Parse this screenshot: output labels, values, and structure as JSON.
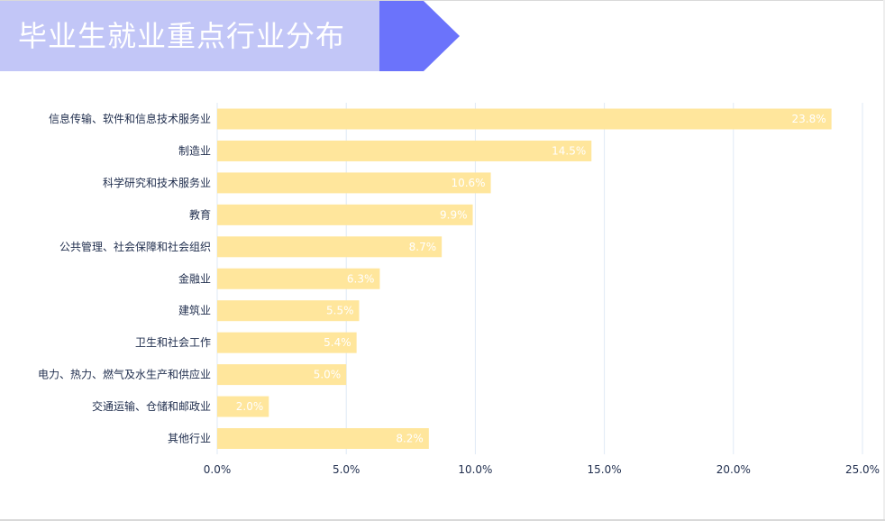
{
  "header": {
    "title": "毕业生就业重点行业分布",
    "colors": {
      "banner_fill": "#c2c6f7",
      "arrow_fill": "#6b73fb"
    }
  },
  "chart_data": {
    "type": "bar",
    "orientation": "horizontal",
    "categories": [
      "信息传输、软件和信息技术服务业",
      "制造业",
      "科学研究和技术服务业",
      "教育",
      "公共管理、社会保障和社会组织",
      "金融业",
      "建筑业",
      "卫生和社会工作",
      "电力、热力、燃气及水生产和供应业",
      "交通运输、仓储和邮政业",
      "其他行业"
    ],
    "values": [
      23.8,
      14.5,
      10.6,
      9.9,
      8.7,
      6.3,
      5.5,
      5.4,
      5.0,
      2.0,
      8.2
    ],
    "value_labels": [
      "23.8%",
      "14.5%",
      "10.6%",
      "9.9%",
      "8.7%",
      "6.3%",
      "5.5%",
      "5.4%",
      "5.0%",
      "2.0%",
      "8.2%"
    ],
    "xticks": [
      "0.0%",
      "5.0%",
      "10.0%",
      "15.0%",
      "20.0%",
      "25.0%"
    ],
    "xlim": [
      0,
      25
    ],
    "grid": true,
    "colors": {
      "bar": "#ffe69c",
      "grid": "#dfe9f5",
      "tick_text": "#1f2d4d",
      "label_text": "#1f2d4d",
      "value_text": "#ffffff"
    }
  }
}
